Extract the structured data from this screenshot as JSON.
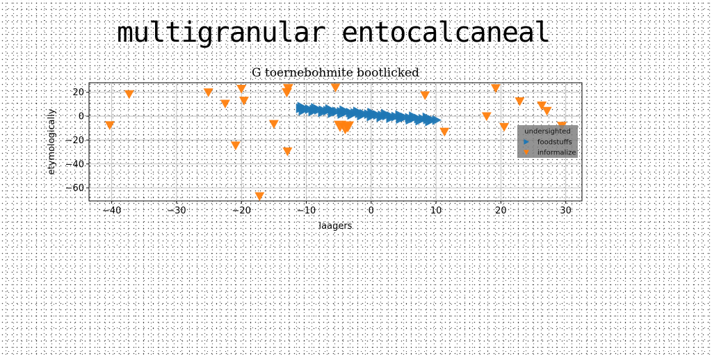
{
  "header": {
    "title": "multigranular entocalcaneal"
  },
  "chart_data": {
    "type": "scatter",
    "title": "G toernebohmite bootlicked",
    "xlabel": "laagers",
    "ylabel": "etymologically",
    "xlim": [
      -43.5,
      32.5
    ],
    "ylim": [
      -71,
      28
    ],
    "xticks": [
      -40,
      -30,
      -20,
      -10,
      0,
      10,
      20,
      30
    ],
    "yticks": [
      -60,
      -40,
      -20,
      0,
      20
    ],
    "xtick_labels": [
      "−40",
      "−30",
      "−20",
      "−10",
      "0",
      "10",
      "20",
      "30"
    ],
    "ytick_labels": [
      "−60",
      "−40",
      "−20",
      "0",
      "20"
    ],
    "grid": true,
    "legend": {
      "title": "undersighted",
      "position": "right"
    },
    "series": [
      {
        "name": "foodstuffs",
        "marker": "triangle-right",
        "color": "#1f77b4",
        "x": [
          -10.9,
          -10.2,
          -9.5,
          -8.8,
          -8.1,
          -7.4,
          -6.7,
          -6.0,
          -5.3,
          -4.6,
          -3.9,
          -3.2,
          -2.5,
          -1.8,
          -1.1,
          -0.4,
          0.3,
          1.0,
          1.7,
          2.4,
          3.1,
          3.8,
          4.5,
          5.2,
          5.9,
          6.6,
          7.3,
          8.0,
          8.7,
          9.4,
          10.1,
          -10.5,
          -9.0,
          -7.5,
          -6.0,
          -4.5,
          -3.0,
          -1.5,
          0.0,
          1.5,
          3.0,
          4.5,
          6.0,
          7.5,
          9.0,
          -10.7,
          -8.6,
          -6.4,
          -4.2,
          -2.1,
          0.1,
          2.2,
          4.4,
          6.5,
          8.6
        ],
        "y": [
          6.5,
          6.2,
          5.9,
          5.6,
          5.3,
          5.0,
          4.6,
          4.3,
          4.0,
          3.7,
          3.3,
          3.0,
          2.7,
          2.4,
          2.0,
          1.7,
          1.4,
          1.0,
          0.7,
          0.4,
          0.0,
          -0.3,
          -0.7,
          -1.0,
          -1.3,
          -1.7,
          -2.0,
          -2.3,
          -2.7,
          -3.0,
          -3.3,
          4.5,
          3.9,
          3.2,
          2.5,
          1.8,
          1.1,
          0.4,
          -0.3,
          -1.0,
          -1.7,
          -2.4,
          -3.1,
          -3.8,
          -4.5,
          8.0,
          7.0,
          6.0,
          5.0,
          4.0,
          3.0,
          2.0,
          1.0,
          0.0,
          -1.0
        ],
        "sizes": [
          14,
          14,
          14,
          14,
          14,
          14,
          14,
          14,
          14,
          14,
          14,
          14,
          14,
          14,
          14,
          14,
          14,
          14,
          14,
          14,
          14,
          14,
          14,
          14,
          14,
          14,
          14,
          14,
          14,
          14,
          14,
          14,
          14,
          14,
          14,
          14,
          14,
          14,
          14,
          14,
          14,
          14,
          14,
          14,
          14,
          14,
          14,
          14,
          14,
          14,
          14,
          14,
          14,
          14,
          14
        ]
      },
      {
        "name": "informalize",
        "marker": "triangle-down",
        "color": "#ff7f0e",
        "x": [
          -40.3,
          -37.3,
          -25.1,
          -22.5,
          -20.0,
          -19.6,
          -20.9,
          -17.2,
          -15.0,
          -13.0,
          -12.8,
          -12.9,
          -5.5,
          -4.8,
          -4.0,
          -3.6,
          8.3,
          11.3,
          17.8,
          19.2,
          20.5,
          22.9,
          26.3,
          27.1,
          29.4
        ],
        "y": [
          -7.5,
          18.5,
          20.0,
          10.5,
          23.0,
          13.0,
          -24.5,
          -67.0,
          -6.5,
          20.0,
          23.5,
          -29.5,
          24.0,
          -8.0,
          -10.0,
          -8.5,
          17.5,
          -13.0,
          0.0,
          23.5,
          -9.0,
          12.5,
          9.0,
          4.5,
          -8.0
        ],
        "sizes": [
          14,
          14,
          14,
          14,
          14,
          14,
          14,
          14,
          14,
          15,
          15,
          14,
          14,
          18,
          18,
          18,
          14,
          14,
          14,
          14,
          14,
          14,
          14,
          14,
          14
        ]
      }
    ]
  }
}
